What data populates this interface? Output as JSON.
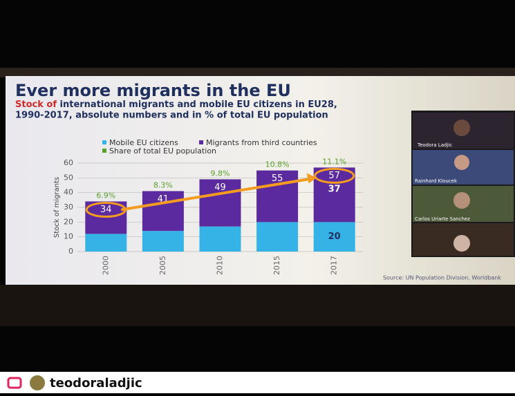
{
  "chart_data": {
    "type": "bar",
    "stacked": true,
    "title": "Ever more migrants in the EU",
    "subtitle_highlight": "Stock of",
    "subtitle": "international migrants and mobile EU citizens in EU28,",
    "subtitle_line2": "1990-2017, absolute numbers and in % of total EU population",
    "y_label": "Stock of migrants",
    "categories": [
      "2000",
      "2005",
      "2010",
      "2015",
      "2017"
    ],
    "series": [
      {
        "name": "Mobile EU citizens",
        "color": "#36b3e6",
        "values": [
          12,
          14,
          17,
          20,
          20
        ],
        "value_labels": [
          null,
          null,
          null,
          null,
          "20"
        ]
      },
      {
        "name": "Migrants from third countries",
        "color": "#5b2a9e",
        "values": [
          22,
          27,
          32,
          35,
          37
        ],
        "value_labels": [
          null,
          null,
          null,
          null,
          "37"
        ]
      }
    ],
    "totals": [
      34,
      41,
      49,
      55,
      57
    ],
    "share": {
      "name": "Share of total EU population",
      "color": "#5aa02c",
      "values": [
        6.9,
        8.3,
        9.8,
        10.8,
        11.1
      ],
      "value_labels": [
        "6.9%",
        "8.3%",
        "9.8%",
        "10.8%",
        "11.1%"
      ]
    },
    "ylim": [
      0,
      60
    ],
    "yticks": [
      0,
      10,
      20,
      30,
      40,
      50,
      60
    ],
    "grid": true,
    "source": "Source: UN Population Division, Worldbank"
  },
  "participants": [
    "Teodora Ladjic",
    "Rainhard Kloucek",
    "Carlos Uriarte Sanchez"
  ],
  "username": "teodoraladjic"
}
